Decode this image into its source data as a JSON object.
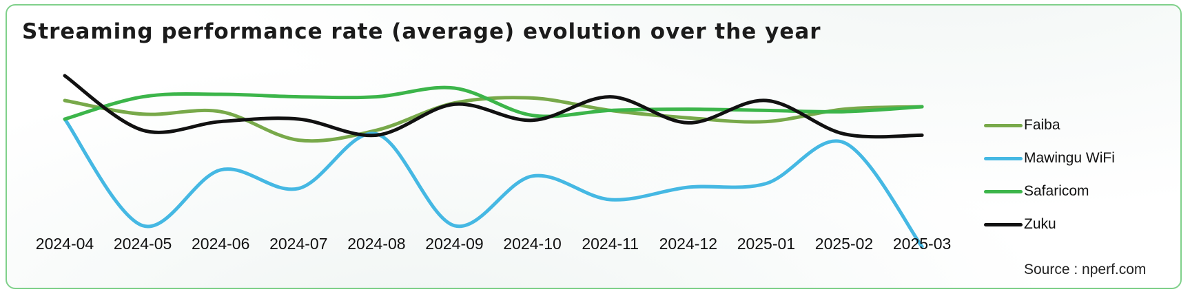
{
  "chart_data": {
    "type": "line",
    "title": "Streaming performance rate (average) evolution over the year",
    "categories": [
      "2024-04",
      "2024-05",
      "2024-06",
      "2024-07",
      "2024-08",
      "2024-09",
      "2024-10",
      "2024-11",
      "2024-12",
      "2025-01",
      "2025-02",
      "2025-03"
    ],
    "series": [
      {
        "name": "Faiba",
        "color": "#78a94a",
        "values": [
          70,
          64.5,
          65.5,
          54,
          58,
          69,
          71,
          66,
          63,
          61.5,
          66.5,
          67.5
        ]
      },
      {
        "name": "Mawingu WiFi",
        "color": "#45b8e3",
        "values": [
          62.5,
          19.5,
          42,
          34.5,
          56.5,
          19.5,
          39.5,
          30,
          35,
          36.5,
          53,
          11
        ]
      },
      {
        "name": "Safaricom",
        "color": "#3cb54a",
        "values": [
          62.5,
          71.5,
          72.5,
          71.5,
          71.5,
          75,
          64,
          66,
          66.5,
          66,
          65.5,
          67.5
        ]
      },
      {
        "name": "Zuku",
        "color": "#111111",
        "values": [
          80,
          58,
          61.5,
          62.5,
          56,
          68.5,
          62,
          71.5,
          61,
          70,
          56.5,
          56
        ]
      }
    ],
    "legend_position": "right",
    "grid": false,
    "xlabel": "",
    "ylabel": "",
    "ylim": [
      0,
      100
    ]
  },
  "source": "Source : nperf.com"
}
